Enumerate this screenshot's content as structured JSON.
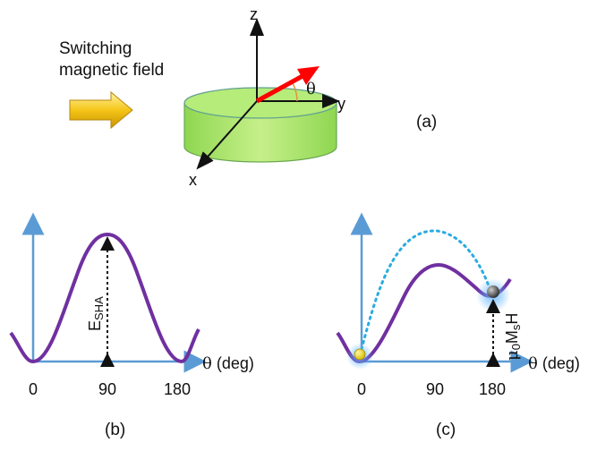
{
  "panel_a": {
    "caption": "(a)",
    "field_label_line1": "Switching",
    "field_label_line2": "magnetic field",
    "axis_x": "x",
    "axis_y": "y",
    "axis_z": "z",
    "angle": "θ"
  },
  "panel_b": {
    "caption": "(b)",
    "barrier_label": "E",
    "barrier_sub": "SHA",
    "theta": "θ",
    "axis_unit": " (deg)",
    "ticks": [
      "0",
      "90",
      "180"
    ]
  },
  "panel_c": {
    "caption": "(c)",
    "zeeman_label_mu": "μ",
    "zeeman_sub0": "0",
    "zeeman_M": "M",
    "zeeman_subs": "s",
    "zeeman_H": "H",
    "theta": "θ",
    "axis_unit": " (deg)",
    "ticks": [
      "0",
      "90",
      "180"
    ]
  },
  "colors": {
    "axis": "#5b9bd5",
    "curve": "#7030a0",
    "disk_fill": "#a6e36b",
    "disk_stroke": "#6aa84f",
    "magnetization": "#ff0000",
    "arrow_fill": "#ffd700",
    "dotted_path": "#29abe2"
  }
}
